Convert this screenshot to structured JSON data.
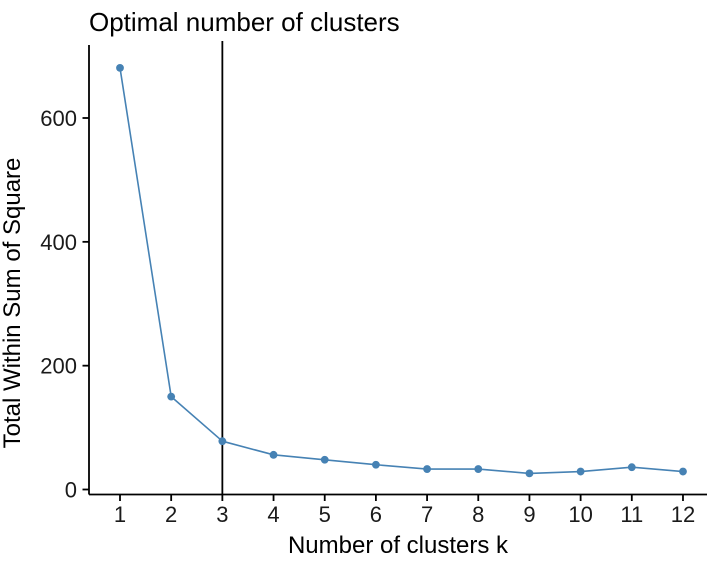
{
  "chart_data": {
    "type": "line",
    "title": "Optimal number of clusters",
    "xlabel": "Number of clusters k",
    "ylabel": "Total Within Sum of Square",
    "x": [
      1,
      2,
      3,
      4,
      5,
      6,
      7,
      8,
      9,
      10,
      11,
      12
    ],
    "x_tick_labels": [
      "1",
      "2",
      "3",
      "4",
      "5",
      "6",
      "7",
      "8",
      "9",
      "10",
      "11",
      "12"
    ],
    "values": [
      681,
      150,
      78,
      56,
      48,
      40,
      33,
      33,
      26,
      29,
      36,
      29
    ],
    "y_ticks": [
      0,
      200,
      400,
      600
    ],
    "y_tick_labels": [
      "0",
      "200",
      "400",
      "600"
    ],
    "ylim": [
      -8,
      718
    ],
    "xlim": [
      0.45,
      12.55
    ],
    "grid": false,
    "legend": "none",
    "vline_x": 3,
    "colors": {
      "series": "#4682B4",
      "point": "#4682B4",
      "axis": "#000000",
      "vline": "#000000",
      "title": "#000000",
      "tick_text": "#1a1a1a",
      "background": "#ffffff"
    }
  }
}
